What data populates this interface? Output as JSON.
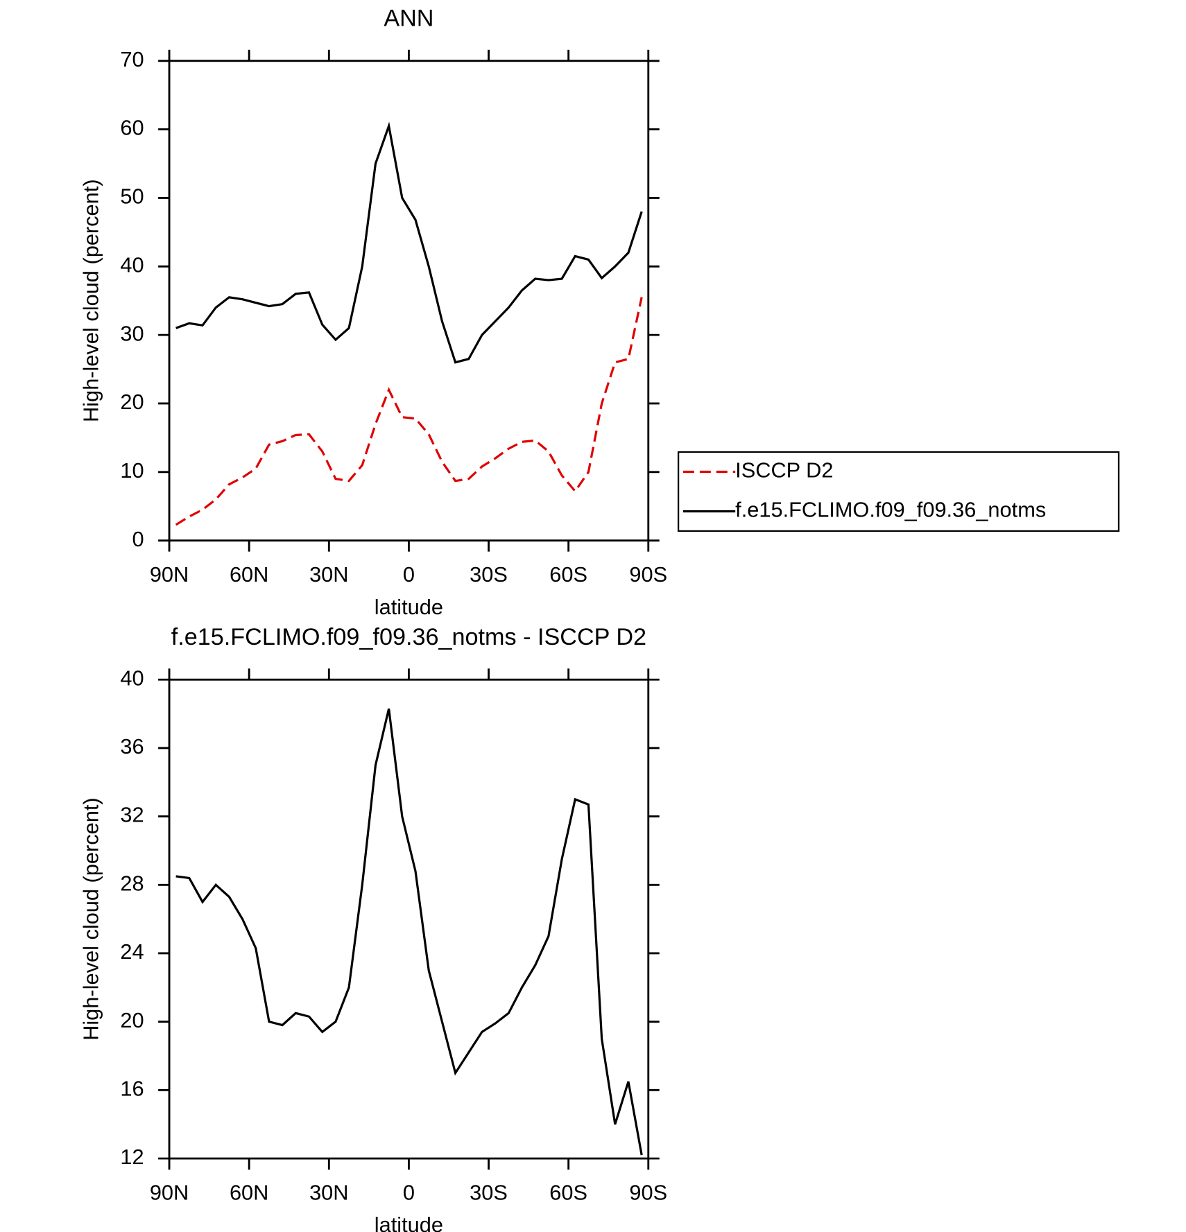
{
  "chart_data": [
    {
      "type": "line",
      "title": "ANN",
      "xlabel": "latitude",
      "ylabel": "High-level cloud (percent)",
      "x": [
        87.5,
        82.5,
        77.5,
        72.5,
        67.5,
        62.5,
        57.5,
        52.5,
        47.5,
        42.5,
        37.5,
        32.5,
        27.5,
        22.5,
        17.5,
        12.5,
        7.5,
        2.5,
        -2.5,
        -7.5,
        -12.5,
        -17.5,
        -22.5,
        -27.5,
        -32.5,
        -37.5,
        -42.5,
        -47.5,
        -52.5,
        -57.5,
        -62.5,
        -67.5,
        -72.5,
        -77.5,
        -82.5,
        -87.5
      ],
      "series": [
        {
          "name": "ISCCP D2",
          "color": "#e00000",
          "dash": true,
          "values": [
            2.3,
            3.5,
            4.5,
            6,
            8.2,
            9.2,
            10.5,
            14,
            14.5,
            15.4,
            15.5,
            13,
            9,
            8.7,
            11,
            17,
            22,
            18,
            17.8,
            15.5,
            11.5,
            8.7,
            9,
            10.8,
            12,
            13.4,
            14.4,
            14.6,
            13,
            9.5,
            7.2,
            10,
            20,
            26,
            26.5,
            35.5
          ]
        },
        {
          "name": "f.e15.FCLIMO.f09_f09.36_notms",
          "color": "#000000",
          "dash": false,
          "values": [
            31,
            31.7,
            31.4,
            34,
            35.5,
            35.2,
            34.7,
            34.2,
            34.5,
            36,
            36.2,
            31.5,
            29.3,
            31,
            40,
            55,
            60.5,
            50,
            46.8,
            40,
            32,
            26,
            26.5,
            30,
            32,
            34,
            36.5,
            38.2,
            38,
            38.2,
            41.5,
            41,
            38.3,
            40,
            42,
            48
          ]
        }
      ],
      "xlim": [
        90,
        -90
      ],
      "xticks": [
        {
          "value": 90,
          "label": "90N"
        },
        {
          "value": 60,
          "label": "60N"
        },
        {
          "value": 30,
          "label": "30N"
        },
        0,
        {
          "value": -30,
          "label": "30S"
        },
        {
          "value": -60,
          "label": "60S"
        },
        {
          "value": -90,
          "label": "90S"
        }
      ],
      "ylim": [
        0,
        70
      ],
      "yticks": [
        0,
        10,
        20,
        30,
        40,
        50,
        60,
        70
      ],
      "legend": "right"
    },
    {
      "type": "line",
      "title": "f.e15.FCLIMO.f09_f09.36_notms - ISCCP D2",
      "xlabel": "latitude",
      "ylabel": "High-level cloud (percent)",
      "x": [
        87.5,
        82.5,
        77.5,
        72.5,
        67.5,
        62.5,
        57.5,
        52.5,
        47.5,
        42.5,
        37.5,
        32.5,
        27.5,
        22.5,
        17.5,
        12.5,
        7.5,
        2.5,
        -2.5,
        -7.5,
        -12.5,
        -17.5,
        -22.5,
        -27.5,
        -32.5,
        -37.5,
        -42.5,
        -47.5,
        -52.5,
        -57.5,
        -62.5,
        -67.5,
        -72.5,
        -77.5,
        -82.5,
        -87.5
      ],
      "values": [
        28.5,
        28.4,
        27,
        28,
        27.3,
        26,
        24.3,
        20,
        19.8,
        20.5,
        20.3,
        19.4,
        20,
        22,
        28,
        35,
        38.3,
        32,
        28.8,
        23,
        20,
        17,
        18.2,
        19.4,
        19.9,
        20.5,
        22,
        23.3,
        25,
        29.5,
        33,
        32.7,
        19,
        14,
        16.5,
        12.2
      ],
      "color": "#000000",
      "xlim": [
        90,
        -90
      ],
      "xticks": [
        {
          "value": 90,
          "label": "90N"
        },
        {
          "value": 60,
          "label": "60N"
        },
        {
          "value": 30,
          "label": "30N"
        },
        0,
        {
          "value": -30,
          "label": "30S"
        },
        {
          "value": -60,
          "label": "60S"
        },
        {
          "value": -90,
          "label": "90S"
        }
      ],
      "ylim": [
        12,
        40
      ],
      "yticks": [
        12,
        16,
        20,
        24,
        28,
        32,
        36,
        40
      ]
    }
  ]
}
